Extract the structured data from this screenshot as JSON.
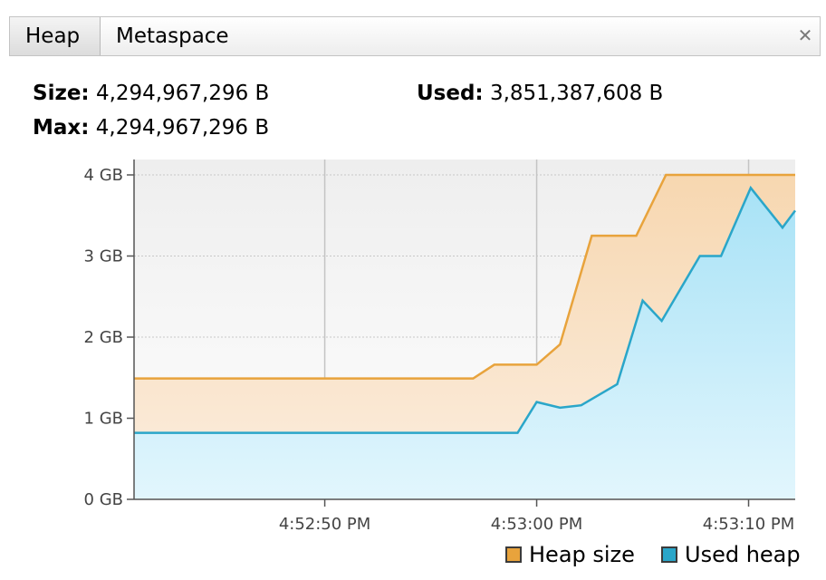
{
  "tabs": {
    "heap": "Heap",
    "metaspace": "Metaspace"
  },
  "close_icon": "close-icon",
  "stats": {
    "size_label": "Size:",
    "size_value": "4,294,967,296 B",
    "used_label": "Used:",
    "used_value": "3,851,387,608 B",
    "max_label": "Max:",
    "max_value": "4,294,967,296 B"
  },
  "chart_data": {
    "type": "area",
    "y_ticks": [
      "0 GB",
      "1 GB",
      "2 GB",
      "3 GB",
      "4 GB"
    ],
    "y_tick_values": [
      0,
      1,
      2,
      3,
      4
    ],
    "ylim": [
      0,
      4.2
    ],
    "x_ticks": [
      {
        "label": "4:52:50 PM",
        "t": 9
      },
      {
        "label": "4:53:00 PM",
        "t": 19
      },
      {
        "label": "4:53:10 PM",
        "t": 29
      }
    ],
    "xlim": [
      0,
      31.2
    ],
    "grid": true,
    "legend_position": "bottom-right",
    "series": [
      {
        "name": "Heap size",
        "color": "#e8a33c",
        "fill": "#f8dfbf",
        "x": [
          0,
          16,
          17,
          19,
          20.1,
          21.6,
          23.7,
          25.1,
          31.2
        ],
        "y": [
          1.49,
          1.49,
          1.66,
          1.66,
          1.91,
          3.25,
          3.25,
          4.0,
          4.0
        ]
      },
      {
        "name": "Used heap",
        "color": "#2aa6c9",
        "fill": "#c4ebfa",
        "x": [
          0,
          15,
          16,
          16.7,
          17,
          18.1,
          19,
          20.1,
          21.1,
          22.8,
          24.0,
          24.9,
          26.7,
          27.7,
          29.1,
          30.6,
          31.2
        ],
        "y": [
          0.82,
          0.82,
          0.82,
          0.82,
          0.82,
          0.82,
          1.2,
          1.13,
          1.16,
          1.42,
          2.45,
          2.2,
          3.0,
          3.0,
          3.84,
          3.35,
          3.56
        ]
      }
    ]
  },
  "legend": {
    "heap_size": "Heap size",
    "used_heap": "Used heap"
  }
}
